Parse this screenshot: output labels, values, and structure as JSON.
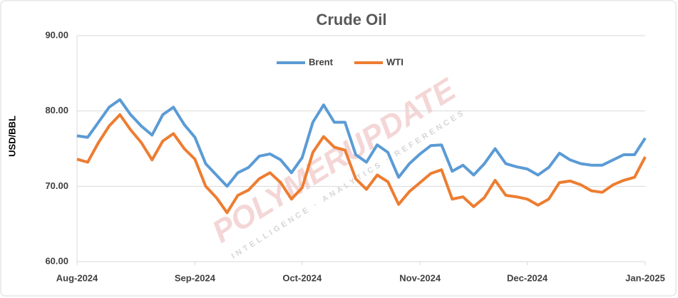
{
  "chart_data": {
    "type": "line",
    "title": "Crude Oil",
    "y_label": "USD/BBL",
    "watermark": "POLYMERUPDATE",
    "watermark_subtitle": "INTELLIGENCE · ANALYTICS · REFERENCES",
    "categories": [
      "Aug-2024",
      null,
      null,
      null,
      null,
      null,
      null,
      null,
      null,
      null,
      null,
      "Sep-2024",
      null,
      null,
      null,
      null,
      null,
      null,
      null,
      null,
      null,
      "Oct-2024",
      null,
      null,
      null,
      null,
      null,
      null,
      null,
      null,
      null,
      null,
      "Nov-2024",
      null,
      null,
      null,
      null,
      null,
      null,
      null,
      null,
      null,
      "Dec-2024",
      null,
      null,
      null,
      null,
      null,
      null,
      null,
      null,
      null,
      null,
      "Jan-2025"
    ],
    "series": [
      {
        "name": "Brent",
        "color": "#5b9bd5",
        "values": [
          76.7,
          76.5,
          78.5,
          80.5,
          81.5,
          79.5,
          78,
          76.8,
          79.5,
          80.5,
          78.2,
          76.5,
          73,
          71.5,
          70,
          71.8,
          72.5,
          74,
          74.3,
          73.5,
          71.8,
          73.8,
          78.5,
          80.8,
          78.5,
          78.5,
          74.2,
          73.2,
          75.5,
          74.5,
          71.2,
          73,
          74.3,
          75.4,
          75.5,
          72,
          72.8,
          71.5,
          73,
          75,
          73,
          72.6,
          72.3,
          71.5,
          72.5,
          74.4,
          73.5,
          73,
          72.8,
          72.8,
          73.5,
          74.2,
          74.2,
          76.4
        ]
      },
      {
        "name": "WTI",
        "color": "#ed7d31",
        "values": [
          73.6,
          73.2,
          75.8,
          78,
          79.5,
          77.5,
          75.8,
          73.5,
          76,
          77,
          75,
          73.6,
          70,
          68.5,
          66.5,
          68.8,
          69.5,
          71,
          71.8,
          70.5,
          68.3,
          69.8,
          74.5,
          76.6,
          75.2,
          74.8,
          71,
          69.6,
          71.5,
          70.6,
          67.6,
          69.3,
          70.5,
          71.7,
          72.2,
          68.3,
          68.6,
          67.3,
          68.5,
          70.8,
          68.8,
          68.6,
          68.3,
          67.5,
          68.3,
          70.5,
          70.7,
          70.2,
          69.4,
          69.2,
          70.2,
          70.8,
          71.2,
          73.9
        ]
      }
    ],
    "ylim": [
      60,
      90
    ],
    "yticks": [
      {
        "value": 60,
        "label": "60.00"
      },
      {
        "value": 70,
        "label": "70.00"
      },
      {
        "value": 80,
        "label": "80.00"
      },
      {
        "value": 90,
        "label": "90.00"
      }
    ],
    "grid": true,
    "legend": "top"
  }
}
